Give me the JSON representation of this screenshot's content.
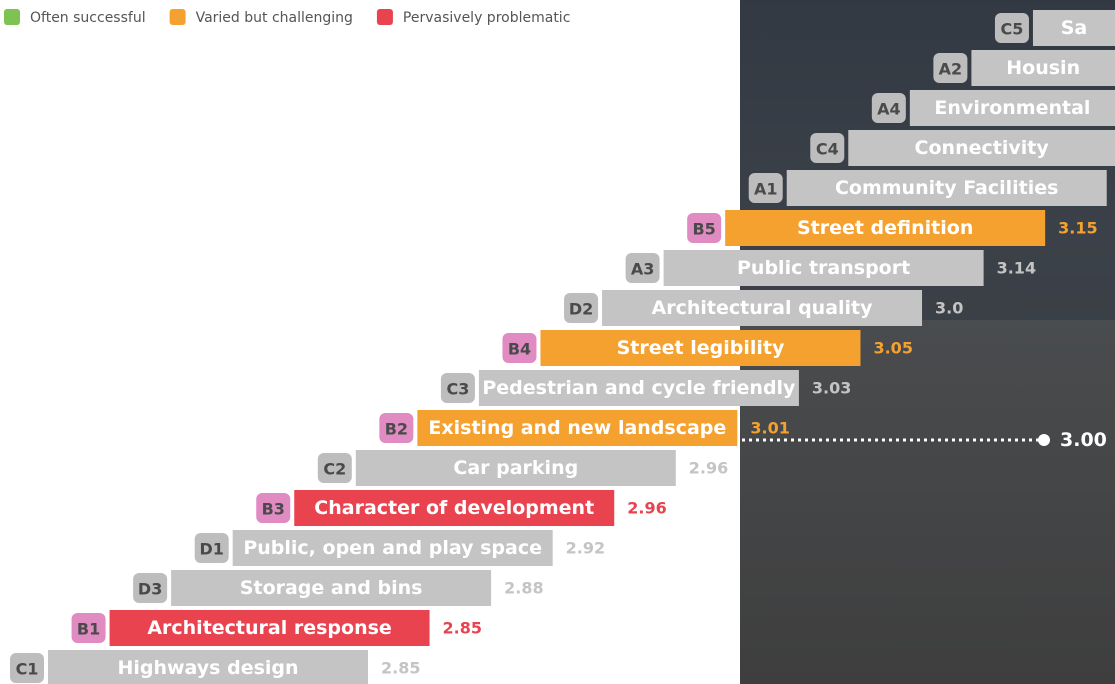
{
  "legend": [
    {
      "label": "Often successful",
      "color": "#7dc253"
    },
    {
      "label": "Varied but challenging",
      "color": "#f5a12f"
    },
    {
      "label": "Pervasively problematic",
      "color": "#e8434f"
    }
  ],
  "items": [
    {
      "code": "C5",
      "label": "Sa",
      "color": "#c4c4c4",
      "badge_color": "#bdbdbd"
    },
    {
      "code": "A2",
      "label": "Housin",
      "color": "#c4c4c4",
      "badge_color": "#bdbdbd"
    },
    {
      "code": "A4",
      "label": "Environmental",
      "color": "#c4c4c4",
      "badge_color": "#bdbdbd"
    },
    {
      "code": "C4",
      "label": "Connectivity",
      "color": "#c4c4c4",
      "badge_color": "#bdbdbd"
    },
    {
      "code": "A1",
      "label": "Community Facilities",
      "color": "#c4c4c4",
      "badge_color": "#bdbdbd"
    },
    {
      "code": "B5",
      "label": "Street definition",
      "value": "3.15",
      "color": "#f5a12f",
      "badge_color": "#e08bc2"
    },
    {
      "code": "A3",
      "label": "Public transport",
      "value": "3.14",
      "color": "#c4c4c4",
      "badge_color": "#bdbdbd"
    },
    {
      "code": "D2",
      "label": "Architectural quality",
      "value": "3.0",
      "color": "#c4c4c4",
      "badge_color": "#bdbdbd"
    },
    {
      "code": "B4",
      "label": "Street legibility",
      "value": "3.05",
      "color": "#f5a12f",
      "badge_color": "#e08bc2"
    },
    {
      "code": "C3",
      "label": "Pedestrian and cycle friendly",
      "value": "3.03",
      "color": "#c4c4c4",
      "badge_color": "#bdbdbd"
    },
    {
      "code": "B2",
      "label": "Existing and new landscape",
      "value": "3.01",
      "color": "#f5a12f",
      "badge_color": "#e08bc2"
    },
    {
      "code": "C2",
      "label": "Car parking",
      "value": "2.96",
      "color": "#c4c4c4",
      "badge_color": "#bdbdbd"
    },
    {
      "code": "B3",
      "label": "Character of development",
      "value": "2.96",
      "color": "#e8434f",
      "badge_color": "#e08bc2"
    },
    {
      "code": "D1",
      "label": "Public, open and play space",
      "value": "2.92",
      "color": "#c4c4c4",
      "badge_color": "#bdbdbd"
    },
    {
      "code": "D3",
      "label": "Storage and bins",
      "value": "2.88",
      "color": "#c4c4c4",
      "badge_color": "#bdbdbd"
    },
    {
      "code": "B1",
      "label": "Architectural response",
      "value": "2.85",
      "color": "#e8434f",
      "badge_color": "#e08bc2"
    },
    {
      "code": "C1",
      "label": "Highways design",
      "value": "2.85",
      "color": "#c4c4c4",
      "badge_color": "#bdbdbd"
    }
  ],
  "reference": {
    "label": "3.00"
  }
}
